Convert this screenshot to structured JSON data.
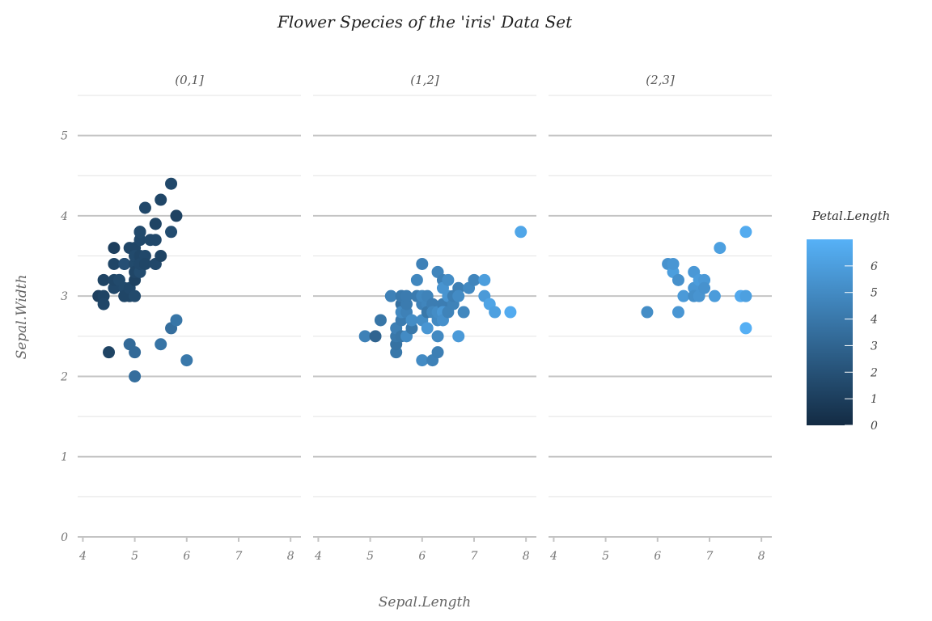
{
  "chart_data": {
    "type": "scatter",
    "title": "Flower Species of the 'iris' Data Set",
    "xlabel": "Sepal.Length",
    "ylabel": "Sepal.Width",
    "xlim": [
      3.9,
      8.2
    ],
    "ylim": [
      0,
      5.5
    ],
    "x_ticks": [
      4,
      5,
      6,
      7,
      8
    ],
    "y_ticks": [
      0,
      1,
      2,
      3,
      4,
      5
    ],
    "grid": true,
    "legend": {
      "title": "Petal.Length",
      "placement": "right",
      "type": "colorbar",
      "range": [
        0,
        7
      ],
      "ticks": [
        0,
        1,
        2,
        3,
        4,
        5,
        6
      ],
      "colors": [
        "#132b43",
        "#56b1f7"
      ]
    },
    "facets": [
      {
        "label": "(0,1]",
        "points": [
          {
            "x": 4.3,
            "y": 3.0,
            "c": 1.1
          },
          {
            "x": 4.4,
            "y": 3.0,
            "c": 1.3
          },
          {
            "x": 4.4,
            "y": 2.9,
            "c": 1.4
          },
          {
            "x": 4.4,
            "y": 3.2,
            "c": 1.3
          },
          {
            "x": 4.5,
            "y": 2.3,
            "c": 1.3
          },
          {
            "x": 4.6,
            "y": 3.1,
            "c": 1.5
          },
          {
            "x": 4.6,
            "y": 3.4,
            "c": 1.4
          },
          {
            "x": 4.6,
            "y": 3.6,
            "c": 1.0
          },
          {
            "x": 4.6,
            "y": 3.2,
            "c": 1.4
          },
          {
            "x": 4.7,
            "y": 3.2,
            "c": 1.3
          },
          {
            "x": 4.7,
            "y": 3.2,
            "c": 1.6
          },
          {
            "x": 4.8,
            "y": 3.4,
            "c": 1.6
          },
          {
            "x": 4.8,
            "y": 3.0,
            "c": 1.4
          },
          {
            "x": 4.8,
            "y": 3.1,
            "c": 1.6
          },
          {
            "x": 4.8,
            "y": 3.4,
            "c": 1.9
          },
          {
            "x": 4.8,
            "y": 3.0,
            "c": 1.4
          },
          {
            "x": 4.9,
            "y": 3.0,
            "c": 1.4
          },
          {
            "x": 4.9,
            "y": 3.1,
            "c": 1.5
          },
          {
            "x": 4.9,
            "y": 3.6,
            "c": 1.4
          },
          {
            "x": 4.9,
            "y": 2.4,
            "c": 3.3
          },
          {
            "x": 5.0,
            "y": 3.6,
            "c": 1.4
          },
          {
            "x": 5.0,
            "y": 3.4,
            "c": 1.5
          },
          {
            "x": 5.0,
            "y": 3.0,
            "c": 1.6
          },
          {
            "x": 5.0,
            "y": 3.4,
            "c": 1.6
          },
          {
            "x": 5.0,
            "y": 3.2,
            "c": 1.2
          },
          {
            "x": 5.0,
            "y": 3.5,
            "c": 1.3
          },
          {
            "x": 5.0,
            "y": 3.5,
            "c": 1.6
          },
          {
            "x": 5.0,
            "y": 3.3,
            "c": 1.4
          },
          {
            "x": 5.0,
            "y": 2.3,
            "c": 3.3
          },
          {
            "x": 5.0,
            "y": 2.0,
            "c": 3.5
          },
          {
            "x": 5.1,
            "y": 3.5,
            "c": 1.4
          },
          {
            "x": 5.1,
            "y": 3.8,
            "c": 1.5
          },
          {
            "x": 5.1,
            "y": 3.7,
            "c": 1.5
          },
          {
            "x": 5.1,
            "y": 3.3,
            "c": 1.7
          },
          {
            "x": 5.1,
            "y": 3.4,
            "c": 1.5
          },
          {
            "x": 5.1,
            "y": 3.8,
            "c": 1.9
          },
          {
            "x": 5.1,
            "y": 3.8,
            "c": 1.6
          },
          {
            "x": 5.2,
            "y": 3.5,
            "c": 1.5
          },
          {
            "x": 5.2,
            "y": 3.4,
            "c": 1.4
          },
          {
            "x": 5.2,
            "y": 4.1,
            "c": 1.5
          },
          {
            "x": 5.3,
            "y": 3.7,
            "c": 1.5
          },
          {
            "x": 5.4,
            "y": 3.9,
            "c": 1.7
          },
          {
            "x": 5.4,
            "y": 3.7,
            "c": 1.5
          },
          {
            "x": 5.4,
            "y": 3.9,
            "c": 1.3
          },
          {
            "x": 5.4,
            "y": 3.4,
            "c": 1.7
          },
          {
            "x": 5.4,
            "y": 3.4,
            "c": 1.5
          },
          {
            "x": 5.5,
            "y": 4.2,
            "c": 1.4
          },
          {
            "x": 5.5,
            "y": 3.5,
            "c": 1.3
          },
          {
            "x": 5.5,
            "y": 2.4,
            "c": 3.8
          },
          {
            "x": 5.7,
            "y": 4.4,
            "c": 1.5
          },
          {
            "x": 5.7,
            "y": 3.8,
            "c": 1.7
          },
          {
            "x": 5.7,
            "y": 2.6,
            "c": 3.5
          },
          {
            "x": 5.8,
            "y": 4.0,
            "c": 1.2
          },
          {
            "x": 5.8,
            "y": 2.7,
            "c": 3.9
          },
          {
            "x": 6.0,
            "y": 2.2,
            "c": 4.0
          }
        ]
      },
      {
        "label": "(1,2]",
        "points": [
          {
            "x": 4.9,
            "y": 2.5,
            "c": 4.5
          },
          {
            "x": 5.1,
            "y": 2.5,
            "c": 3.0
          },
          {
            "x": 5.2,
            "y": 2.7,
            "c": 3.9
          },
          {
            "x": 5.4,
            "y": 3.0,
            "c": 4.5
          },
          {
            "x": 5.5,
            "y": 2.3,
            "c": 4.0
          },
          {
            "x": 5.5,
            "y": 2.4,
            "c": 3.7
          },
          {
            "x": 5.5,
            "y": 2.5,
            "c": 4.0
          },
          {
            "x": 5.5,
            "y": 2.6,
            "c": 4.4
          },
          {
            "x": 5.6,
            "y": 2.9,
            "c": 3.6
          },
          {
            "x": 5.6,
            "y": 3.0,
            "c": 4.5
          },
          {
            "x": 5.6,
            "y": 2.5,
            "c": 3.9
          },
          {
            "x": 5.6,
            "y": 3.0,
            "c": 4.1
          },
          {
            "x": 5.6,
            "y": 2.7,
            "c": 4.2
          },
          {
            "x": 5.6,
            "y": 2.8,
            "c": 4.9
          },
          {
            "x": 5.7,
            "y": 2.8,
            "c": 4.5
          },
          {
            "x": 5.7,
            "y": 2.9,
            "c": 4.2
          },
          {
            "x": 5.7,
            "y": 3.0,
            "c": 4.2
          },
          {
            "x": 5.7,
            "y": 2.5,
            "c": 5.0
          },
          {
            "x": 5.8,
            "y": 2.6,
            "c": 4.0
          },
          {
            "x": 5.8,
            "y": 2.7,
            "c": 5.1
          },
          {
            "x": 5.9,
            "y": 3.0,
            "c": 4.2
          },
          {
            "x": 5.9,
            "y": 3.2,
            "c": 4.8
          },
          {
            "x": 6.0,
            "y": 2.9,
            "c": 4.5
          },
          {
            "x": 6.0,
            "y": 3.4,
            "c": 4.5
          },
          {
            "x": 6.0,
            "y": 2.2,
            "c": 5.0
          },
          {
            "x": 6.0,
            "y": 2.7,
            "c": 5.1
          },
          {
            "x": 6.0,
            "y": 3.0,
            "c": 4.8
          },
          {
            "x": 6.1,
            "y": 2.9,
            "c": 4.7
          },
          {
            "x": 6.1,
            "y": 3.0,
            "c": 4.6
          },
          {
            "x": 6.1,
            "y": 2.8,
            "c": 4.0
          },
          {
            "x": 6.1,
            "y": 2.6,
            "c": 5.6
          },
          {
            "x": 6.2,
            "y": 2.2,
            "c": 4.5
          },
          {
            "x": 6.2,
            "y": 2.9,
            "c": 4.3
          },
          {
            "x": 6.2,
            "y": 2.8,
            "c": 4.8
          },
          {
            "x": 6.3,
            "y": 2.3,
            "c": 4.4
          },
          {
            "x": 6.3,
            "y": 2.5,
            "c": 4.9
          },
          {
            "x": 6.3,
            "y": 3.3,
            "c": 4.7
          },
          {
            "x": 6.3,
            "y": 2.7,
            "c": 4.9
          },
          {
            "x": 6.3,
            "y": 2.8,
            "c": 5.1
          },
          {
            "x": 6.4,
            "y": 2.9,
            "c": 4.3
          },
          {
            "x": 6.4,
            "y": 3.2,
            "c": 4.5
          },
          {
            "x": 6.4,
            "y": 2.8,
            "c": 5.6
          },
          {
            "x": 6.4,
            "y": 3.1,
            "c": 5.5
          },
          {
            "x": 6.4,
            "y": 2.7,
            "c": 5.3
          },
          {
            "x": 6.5,
            "y": 2.8,
            "c": 4.6
          },
          {
            "x": 6.5,
            "y": 3.2,
            "c": 5.1
          },
          {
            "x": 6.5,
            "y": 3.0,
            "c": 5.5
          },
          {
            "x": 6.6,
            "y": 2.9,
            "c": 4.6
          },
          {
            "x": 6.6,
            "y": 3.0,
            "c": 4.4
          },
          {
            "x": 6.7,
            "y": 3.1,
            "c": 4.4
          },
          {
            "x": 6.7,
            "y": 2.5,
            "c": 5.8
          },
          {
            "x": 6.7,
            "y": 3.0,
            "c": 5.0
          },
          {
            "x": 6.8,
            "y": 2.8,
            "c": 4.8
          },
          {
            "x": 6.9,
            "y": 3.1,
            "c": 4.9
          },
          {
            "x": 7.0,
            "y": 3.2,
            "c": 4.7
          },
          {
            "x": 7.2,
            "y": 3.2,
            "c": 6.0
          },
          {
            "x": 7.2,
            "y": 3.0,
            "c": 5.8
          },
          {
            "x": 7.3,
            "y": 2.9,
            "c": 6.3
          },
          {
            "x": 7.4,
            "y": 2.8,
            "c": 6.1
          },
          {
            "x": 7.7,
            "y": 2.8,
            "c": 6.7
          },
          {
            "x": 7.9,
            "y": 3.8,
            "c": 6.4
          }
        ]
      },
      {
        "label": "(2,3]",
        "points": [
          {
            "x": 5.8,
            "y": 2.8,
            "c": 5.1
          },
          {
            "x": 6.2,
            "y": 3.4,
            "c": 5.4
          },
          {
            "x": 6.3,
            "y": 3.3,
            "c": 6.0
          },
          {
            "x": 6.3,
            "y": 3.4,
            "c": 5.6
          },
          {
            "x": 6.4,
            "y": 3.2,
            "c": 5.3
          },
          {
            "x": 6.4,
            "y": 2.8,
            "c": 5.6
          },
          {
            "x": 6.5,
            "y": 3.0,
            "c": 5.8
          },
          {
            "x": 6.7,
            "y": 3.3,
            "c": 5.7
          },
          {
            "x": 6.7,
            "y": 3.1,
            "c": 5.6
          },
          {
            "x": 6.7,
            "y": 3.0,
            "c": 5.2
          },
          {
            "x": 6.8,
            "y": 3.0,
            "c": 5.5
          },
          {
            "x": 6.8,
            "y": 3.2,
            "c": 5.9
          },
          {
            "x": 6.9,
            "y": 3.2,
            "c": 5.7
          },
          {
            "x": 6.9,
            "y": 3.1,
            "c": 5.4
          },
          {
            "x": 7.1,
            "y": 3.0,
            "c": 5.9
          },
          {
            "x": 7.2,
            "y": 3.6,
            "c": 6.1
          },
          {
            "x": 7.6,
            "y": 3.0,
            "c": 6.6
          },
          {
            "x": 7.7,
            "y": 3.8,
            "c": 6.7
          },
          {
            "x": 7.7,
            "y": 2.6,
            "c": 6.9
          },
          {
            "x": 7.7,
            "y": 3.0,
            "c": 6.1
          }
        ]
      }
    ]
  }
}
